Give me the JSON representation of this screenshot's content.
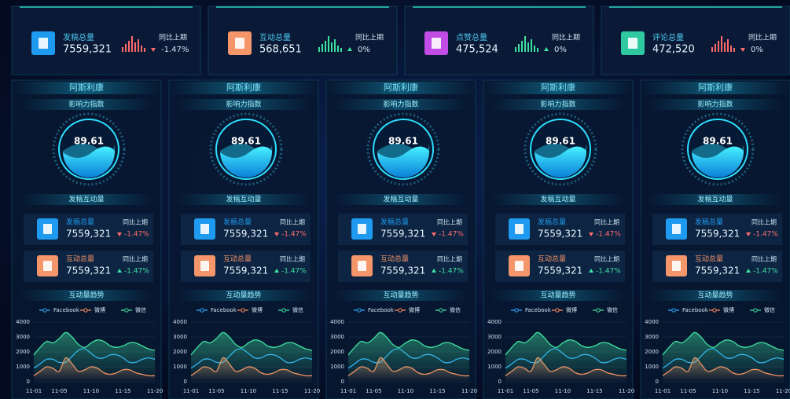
{
  "top_cards": [
    {
      "label": "发稿总量",
      "value": "7559,321",
      "compare_label": "同比上期",
      "change": "-1.47%",
      "trend": "down",
      "color": "#1e9bf0"
    },
    {
      "label": "互动总量",
      "value": "568,651",
      "compare_label": "同比上期",
      "change": "0%",
      "trend": "up",
      "color": "#f5956a"
    },
    {
      "label": "点赞总量",
      "value": "475,524",
      "compare_label": "同比上期",
      "change": "0%",
      "trend": "up",
      "color": "#c24de6"
    },
    {
      "label": "评论总量",
      "value": "472,520",
      "compare_label": "同比上期",
      "change": "0%",
      "trend": "down",
      "color": "#2ec9a0"
    }
  ],
  "columns": [
    {
      "title": "阿斯利康",
      "index_title": "影响力指数",
      "index_value": 89.61,
      "interaction_title": "发稿互动量",
      "stats": [
        {
          "label": "发稿总量",
          "value": "7559,321",
          "compare_label": "同比上期",
          "change": "-1.47%",
          "trend": "down",
          "color": "#1e9bf0"
        },
        {
          "label": "互动总量",
          "value": "7559,321",
          "compare_label": "同比上期",
          "change": "-1.47%",
          "trend": "up",
          "color": "#f5956a"
        }
      ],
      "trend_title": "互动量趋势",
      "chart_data": {
        "type": "line",
        "categories": [
          "11-01",
          null,
          null,
          null,
          "11-05",
          null,
          null,
          null,
          null,
          "11-10",
          null,
          null,
          null,
          null,
          "11-15",
          null,
          null,
          null,
          null,
          "11-20"
        ],
        "ylim": [
          0,
          4000
        ],
        "yticks": [
          0,
          1000,
          2000,
          3000,
          4000
        ],
        "grid": true,
        "series": [
          {
            "name": "Facebook",
            "color": "#2fa8ff",
            "values": [
              900,
              1200,
              1500,
              1500,
              1300,
              1300,
              1700,
              2100,
              2200,
              1900,
              1600,
              1600,
              1800,
              1800,
              1600,
              1300,
              1300,
              1500,
              1600,
              1500
            ]
          },
          {
            "name": "微博",
            "color": "#ff8a5c",
            "values": [
              400,
              700,
              1000,
              900,
              700,
              1600,
              1200,
              700,
              800,
              1000,
              900,
              600,
              500,
              600,
              800,
              800,
              600,
              500,
              400,
              400
            ]
          },
          {
            "name": "微信",
            "color": "#3fe0a0",
            "values": [
              1800,
              2300,
              2700,
              2600,
              2900,
              3300,
              3000,
              2500,
              2300,
              2600,
              2800,
              2700,
              2400,
              2300,
              2400,
              2600,
              2600,
              2400,
              2200,
              2100
            ]
          }
        ]
      }
    },
    {
      "title": "阿斯利康",
      "index_title": "影响力指数",
      "index_value": 89.61,
      "interaction_title": "发稿互动量",
      "stats": [
        {
          "label": "发稿总量",
          "value": "7559,321",
          "compare_label": "同比上期",
          "change": "-1.47%",
          "trend": "down",
          "color": "#1e9bf0"
        },
        {
          "label": "互动总量",
          "value": "7559,321",
          "compare_label": "同比上期",
          "change": "-1.47%",
          "trend": "up",
          "color": "#f5956a"
        }
      ],
      "trend_title": "互动量趋势",
      "chart_data": {
        "type": "line",
        "categories": [
          "11-01",
          null,
          null,
          null,
          "11-05",
          null,
          null,
          null,
          null,
          "11-10",
          null,
          null,
          null,
          null,
          "11-15",
          null,
          null,
          null,
          null,
          "11-20"
        ],
        "ylim": [
          0,
          4000
        ],
        "yticks": [
          0,
          1000,
          2000,
          3000,
          4000
        ],
        "grid": true,
        "series": [
          {
            "name": "Facebook",
            "color": "#2fa8ff",
            "values": [
              900,
              1200,
              1500,
              1500,
              1300,
              1300,
              1700,
              2100,
              2200,
              1900,
              1600,
              1600,
              1800,
              1800,
              1600,
              1300,
              1300,
              1500,
              1600,
              1500
            ]
          },
          {
            "name": "微博",
            "color": "#ff8a5c",
            "values": [
              400,
              700,
              1000,
              900,
              700,
              1600,
              1200,
              700,
              800,
              1000,
              900,
              600,
              500,
              600,
              800,
              800,
              600,
              500,
              400,
              400
            ]
          },
          {
            "name": "微信",
            "color": "#3fe0a0",
            "values": [
              1800,
              2300,
              2700,
              2600,
              2900,
              3300,
              3000,
              2500,
              2300,
              2600,
              2800,
              2700,
              2400,
              2300,
              2400,
              2600,
              2600,
              2400,
              2200,
              2100
            ]
          }
        ]
      }
    },
    {
      "title": "阿斯利康",
      "index_title": "影响力指数",
      "index_value": 89.61,
      "interaction_title": "发稿互动量",
      "stats": [
        {
          "label": "发稿总量",
          "value": "7559,321",
          "compare_label": "同比上期",
          "change": "-1.47%",
          "trend": "down",
          "color": "#1e9bf0"
        },
        {
          "label": "互动总量",
          "value": "7559,321",
          "compare_label": "同比上期",
          "change": "-1.47%",
          "trend": "up",
          "color": "#f5956a"
        }
      ],
      "trend_title": "互动量趋势",
      "chart_data": {
        "type": "line",
        "categories": [
          "11-01",
          null,
          null,
          null,
          "11-05",
          null,
          null,
          null,
          null,
          "11-10",
          null,
          null,
          null,
          null,
          "11-15",
          null,
          null,
          null,
          null,
          "11-20"
        ],
        "ylim": [
          0,
          4000
        ],
        "yticks": [
          0,
          1000,
          2000,
          3000,
          4000
        ],
        "grid": true,
        "series": [
          {
            "name": "Facebook",
            "color": "#2fa8ff",
            "values": [
              900,
              1200,
              1500,
              1500,
              1300,
              1300,
              1700,
              2100,
              2200,
              1900,
              1600,
              1600,
              1800,
              1800,
              1600,
              1300,
              1300,
              1500,
              1600,
              1500
            ]
          },
          {
            "name": "微博",
            "color": "#ff8a5c",
            "values": [
              400,
              700,
              1000,
              900,
              700,
              1600,
              1200,
              700,
              800,
              1000,
              900,
              600,
              500,
              600,
              800,
              800,
              600,
              500,
              400,
              400
            ]
          },
          {
            "name": "微信",
            "color": "#3fe0a0",
            "values": [
              1800,
              2300,
              2700,
              2600,
              2900,
              3300,
              3000,
              2500,
              2300,
              2600,
              2800,
              2700,
              2400,
              2300,
              2400,
              2600,
              2600,
              2400,
              2200,
              2100
            ]
          }
        ]
      }
    },
    {
      "title": "阿斯利康",
      "index_title": "影响力指数",
      "index_value": 89.61,
      "interaction_title": "发稿互动量",
      "stats": [
        {
          "label": "发稿总量",
          "value": "7559,321",
          "compare_label": "同比上期",
          "change": "-1.47%",
          "trend": "down",
          "color": "#1e9bf0"
        },
        {
          "label": "互动总量",
          "value": "7559,321",
          "compare_label": "同比上期",
          "change": "-1.47%",
          "trend": "up",
          "color": "#f5956a"
        }
      ],
      "trend_title": "互动量趋势",
      "chart_data": {
        "type": "line",
        "categories": [
          "11-01",
          null,
          null,
          null,
          "11-05",
          null,
          null,
          null,
          null,
          "11-10",
          null,
          null,
          null,
          null,
          "11-15",
          null,
          null,
          null,
          null,
          "11-20"
        ],
        "ylim": [
          0,
          4000
        ],
        "yticks": [
          0,
          1000,
          2000,
          3000,
          4000
        ],
        "grid": true,
        "series": [
          {
            "name": "Facebook",
            "color": "#2fa8ff",
            "values": [
              900,
              1200,
              1500,
              1500,
              1300,
              1300,
              1700,
              2100,
              2200,
              1900,
              1600,
              1600,
              1800,
              1800,
              1600,
              1300,
              1300,
              1500,
              1600,
              1500
            ]
          },
          {
            "name": "微博",
            "color": "#ff8a5c",
            "values": [
              400,
              700,
              1000,
              900,
              700,
              1600,
              1200,
              700,
              800,
              1000,
              900,
              600,
              500,
              600,
              800,
              800,
              600,
              500,
              400,
              400
            ]
          },
          {
            "name": "微信",
            "color": "#3fe0a0",
            "values": [
              1800,
              2300,
              2700,
              2600,
              2900,
              3300,
              3000,
              2500,
              2300,
              2600,
              2800,
              2700,
              2400,
              2300,
              2400,
              2600,
              2600,
              2400,
              2200,
              2100
            ]
          }
        ]
      }
    },
    {
      "title": "阿斯利康",
      "index_title": "影响力指数",
      "index_value": 89.61,
      "interaction_title": "发稿互动量",
      "stats": [
        {
          "label": "发稿总量",
          "value": "7559,321",
          "compare_label": "同比上期",
          "change": "-1.47%",
          "trend": "down",
          "color": "#1e9bf0"
        },
        {
          "label": "互动总量",
          "value": "7559,321",
          "compare_label": "同比上期",
          "change": "-1.47%",
          "trend": "up",
          "color": "#f5956a"
        }
      ],
      "trend_title": "互动量趋势",
      "chart_data": {
        "type": "line",
        "categories": [
          "11-01",
          null,
          null,
          null,
          "11-05",
          null,
          null,
          null,
          null,
          "11-10",
          null,
          null,
          null,
          null,
          "11-15",
          null,
          null,
          null,
          null,
          "11-20"
        ],
        "ylim": [
          0,
          4000
        ],
        "yticks": [
          0,
          1000,
          2000,
          3000,
          4000
        ],
        "grid": true,
        "series": [
          {
            "name": "Facebook",
            "color": "#2fa8ff",
            "values": [
              900,
              1200,
              1500,
              1500,
              1300,
              1300,
              1700,
              2100,
              2200,
              1900,
              1600,
              1600,
              1800,
              1800,
              1600,
              1300,
              1300,
              1500,
              1600,
              1500
            ]
          },
          {
            "name": "微博",
            "color": "#ff8a5c",
            "values": [
              400,
              700,
              1000,
              900,
              700,
              1600,
              1200,
              700,
              800,
              1000,
              900,
              600,
              500,
              600,
              800,
              800,
              600,
              500,
              400,
              400
            ]
          },
          {
            "name": "微信",
            "color": "#3fe0a0",
            "values": [
              1800,
              2300,
              2700,
              2600,
              2900,
              3300,
              3000,
              2500,
              2300,
              2600,
              2800,
              2700,
              2400,
              2300,
              2400,
              2600,
              2600,
              2400,
              2200,
              2100
            ]
          }
        ]
      }
    }
  ]
}
